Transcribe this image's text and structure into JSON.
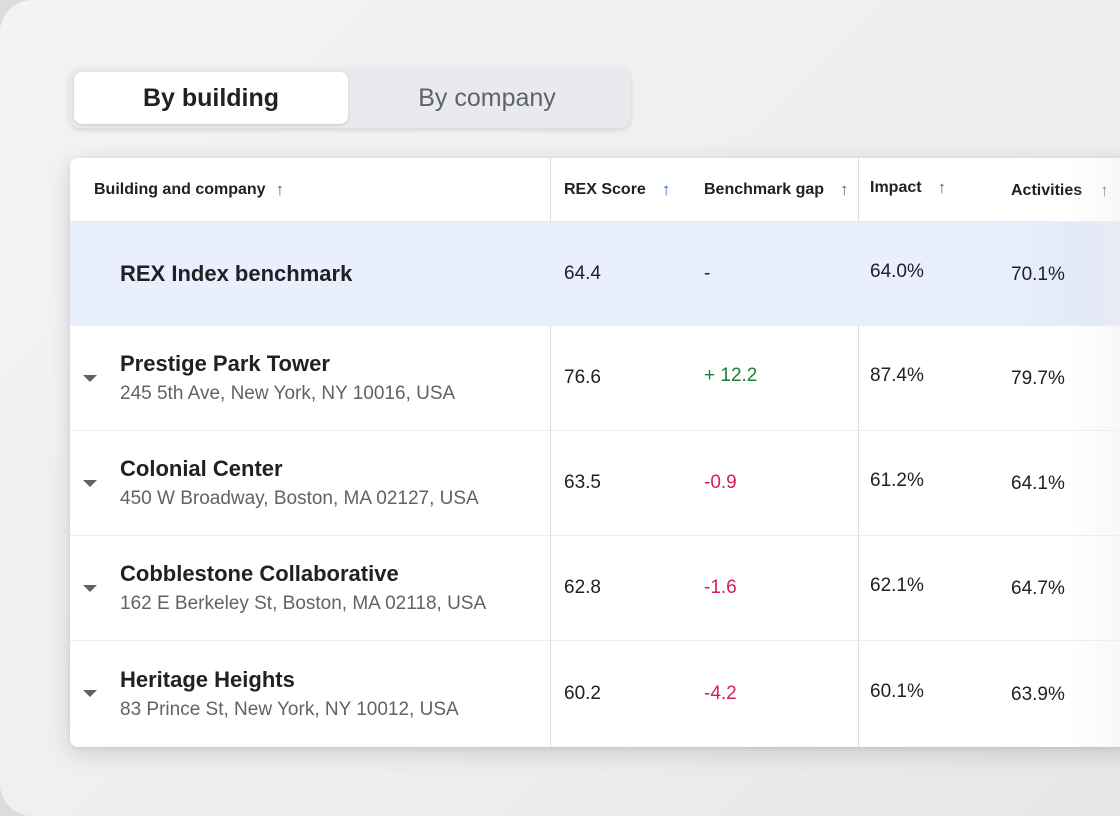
{
  "toggle": {
    "options": [
      {
        "label": "By building",
        "active": true
      },
      {
        "label": "By company",
        "active": false
      }
    ]
  },
  "table": {
    "headers": {
      "building": "Building and company",
      "score": "REX Score",
      "gap": "Benchmark gap",
      "impact": "Impact",
      "activities": "Activities"
    },
    "sort_icon": "arrow-up-icon",
    "active_sort_column": "score",
    "benchmark": {
      "name": "REX Index benchmark",
      "score": "64.4",
      "gap": "-",
      "impact": "64.0%",
      "activities": "70.1%"
    },
    "rows": [
      {
        "name": "Prestige Park Tower",
        "address": "245 5th Ave, New York, NY 10016, USA",
        "score": "76.6",
        "gap": "+ 12.2",
        "gap_sign": "positive",
        "impact": "87.4%",
        "activities": "79.7%"
      },
      {
        "name": "Colonial Center",
        "address": "450 W Broadway, Boston, MA 02127, USA",
        "score": "63.5",
        "gap": "-0.9",
        "gap_sign": "negative",
        "impact": "61.2%",
        "activities": "64.1%"
      },
      {
        "name": "Cobblestone Collaborative",
        "address": "162 E Berkeley St, Boston, MA 02118, USA",
        "score": "62.8",
        "gap": "-1.6",
        "gap_sign": "negative",
        "impact": "62.1%",
        "activities": "64.7%"
      },
      {
        "name": "Heritage Heights",
        "address": "83 Prince St, New York, NY 10012, USA",
        "score": "60.2",
        "gap": "-4.2",
        "gap_sign": "negative",
        "impact": "60.1%",
        "activities": "63.9%"
      }
    ]
  },
  "colors": {
    "accent": "#1a5ce0",
    "positive": "#188038",
    "negative": "#d81b60",
    "benchmark_bg": "#e9effd"
  }
}
